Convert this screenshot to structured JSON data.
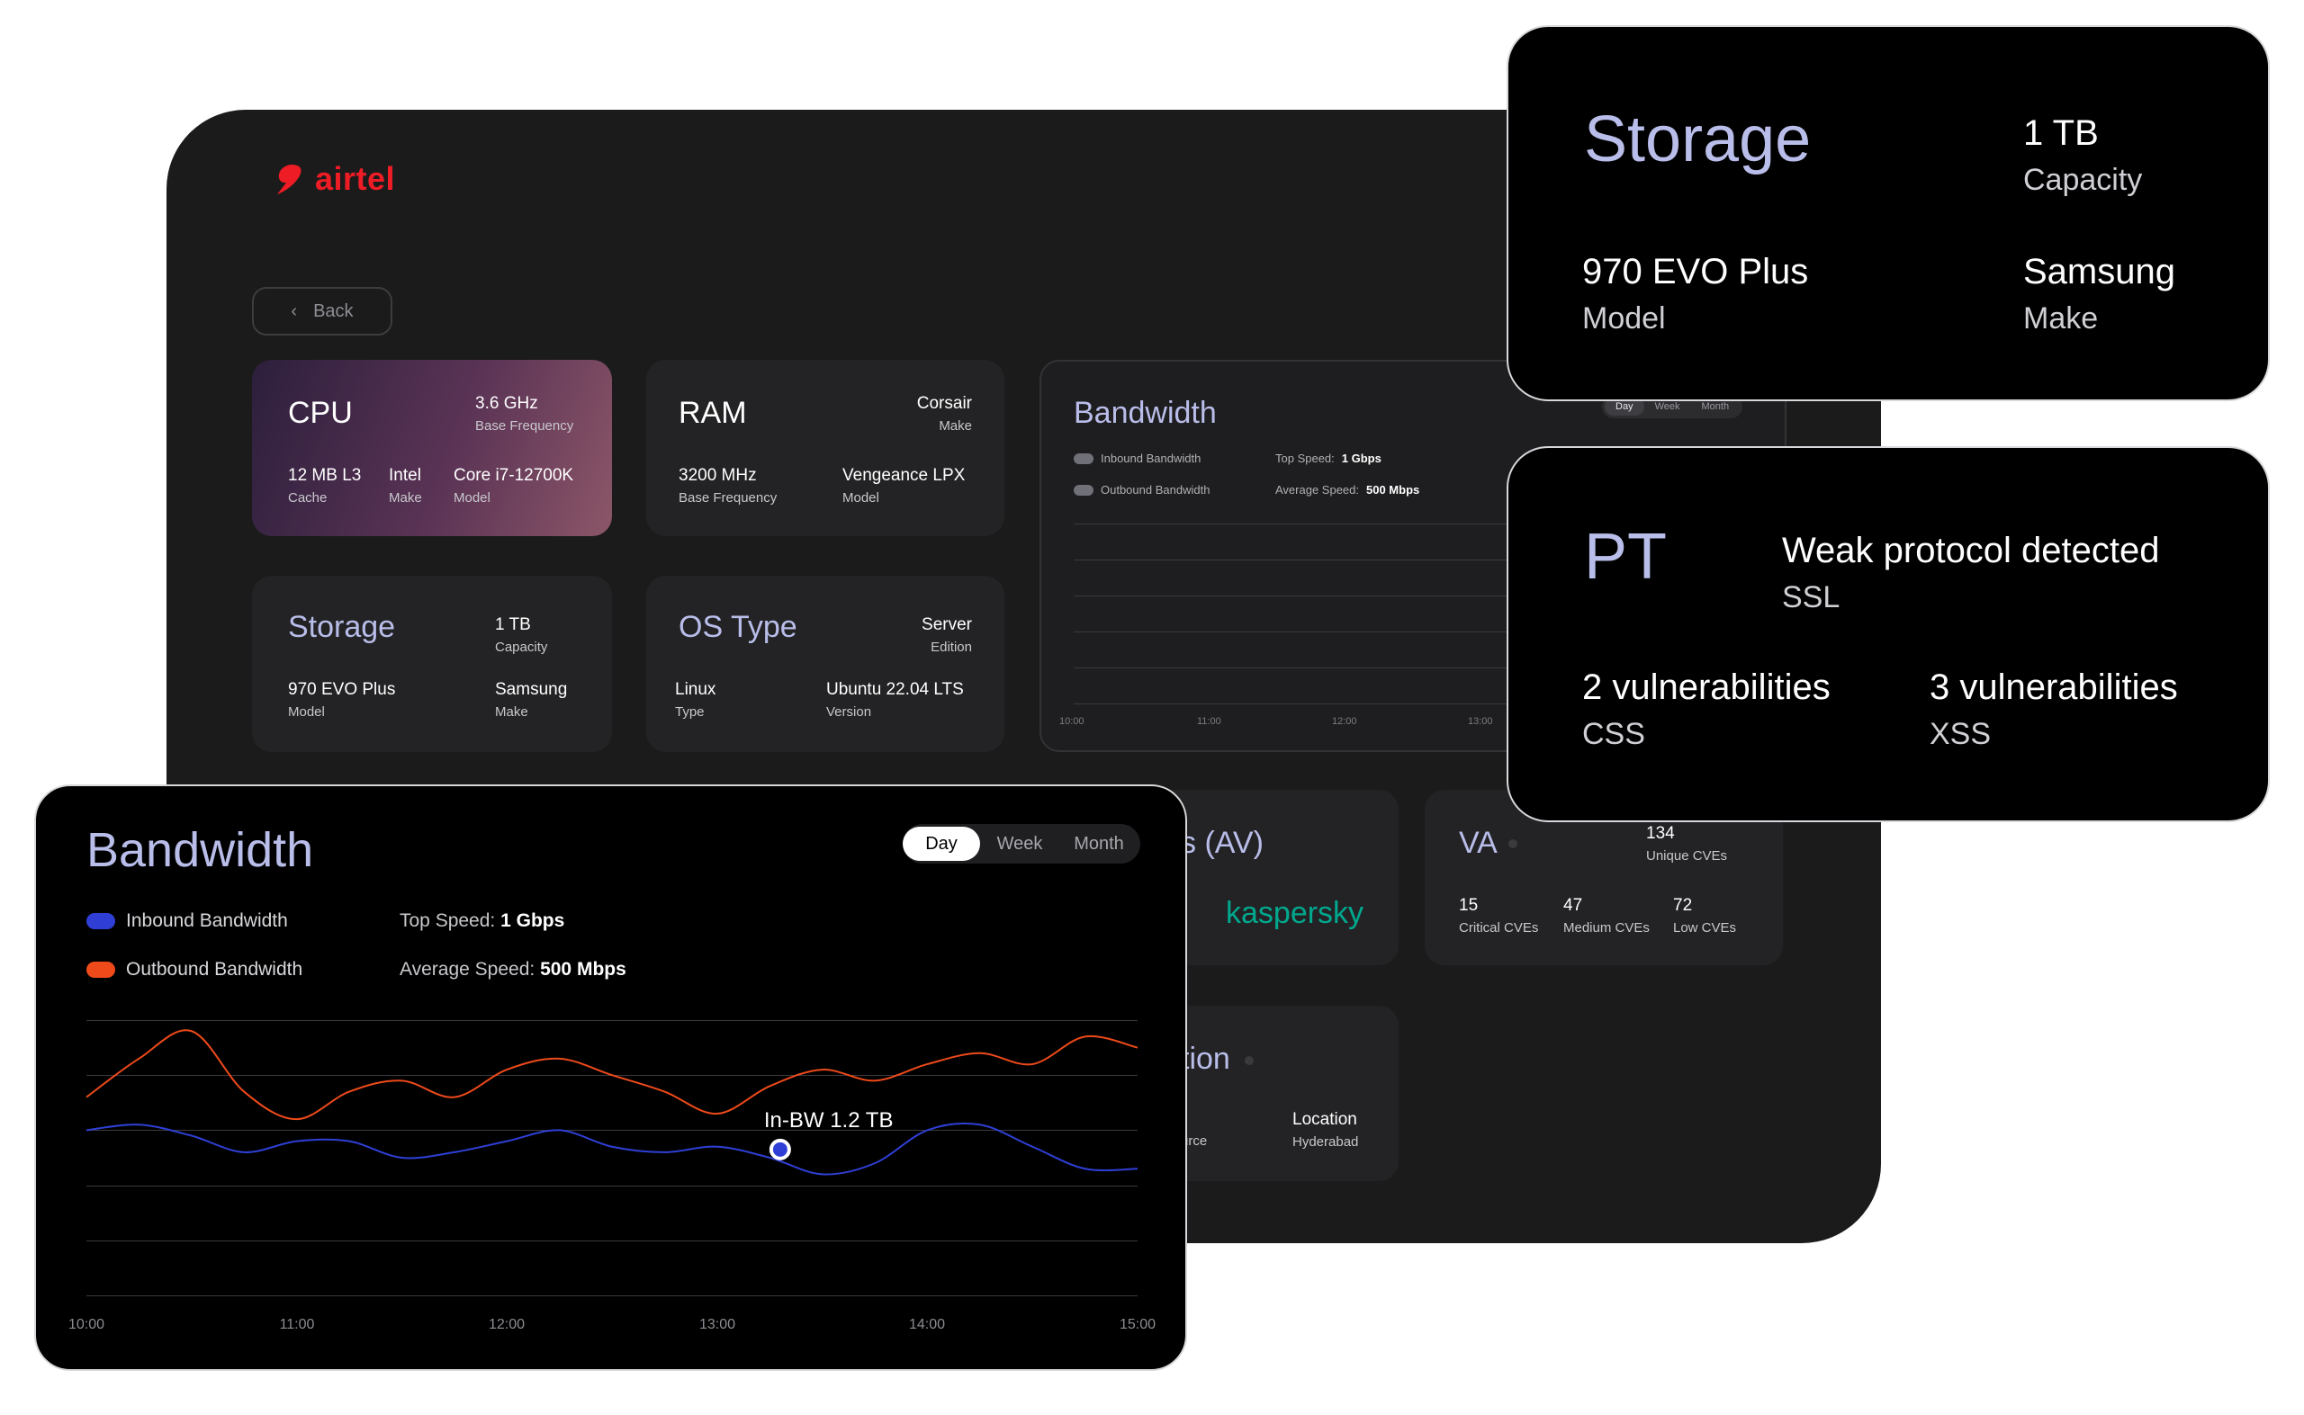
{
  "brand": {
    "name": "airtel",
    "color": "#ee1c25"
  },
  "back": {
    "label": "Back"
  },
  "cpu": {
    "title": "CPU",
    "freq": "3.6 GHz",
    "freq_label": "Base Frequency",
    "cache": "12 MB L3",
    "cache_label": "Cache",
    "make": "Intel",
    "make_label": "Make",
    "model": "Core i7-12700K",
    "model_label": "Model"
  },
  "ram": {
    "title": "RAM",
    "make": "Corsair",
    "make_label": "Make",
    "freq": "3200 MHz",
    "freq_label": "Base Frequency",
    "model": "Vengeance LPX",
    "model_label": "Model"
  },
  "storage": {
    "title": "Storage",
    "capacity": "1 TB",
    "capacity_label": "Capacity",
    "model": "970 EVO Plus",
    "model_label": "Model",
    "make": "Samsung",
    "make_label": "Make"
  },
  "os": {
    "title": "OS Type",
    "edition": "Server",
    "edition_label": "Edition",
    "type": "Linux",
    "type_label": "Type",
    "version": "Ubuntu 22.04 LTS",
    "version_label": "Version"
  },
  "bandwidth_small": {
    "title": "Bandwidth",
    "inbound": "Inbound Bandwidth",
    "outbound": "Outbound Bandwidth",
    "top_label": "Top Speed:",
    "top_value": "1 Gbps",
    "avg_label": "Average Speed:",
    "avg_value": "500 Mbps",
    "tabs": [
      "Day",
      "Week",
      "Month"
    ],
    "ticks": [
      "10:00",
      "11:00",
      "12:00",
      "13:00"
    ]
  },
  "av": {
    "title_partial": "s (AV)",
    "vendor": "kaspersky"
  },
  "va": {
    "title": "VA",
    "unique": "134",
    "unique_label": "Unique CVEs",
    "critical": "15",
    "critical_label": "Critical CVEs",
    "medium": "47",
    "medium_label": "Medium CVEs",
    "low": "72",
    "low_label": "Low CVEs"
  },
  "loc": {
    "title_partial": "tion",
    "source_partial": "urce",
    "location": "Location",
    "location_value": "Hyderabad"
  },
  "storage_overlay": {
    "title": "Storage",
    "capacity": "1 TB",
    "capacity_label": "Capacity",
    "model": "970 EVO Plus",
    "model_label": "Model",
    "make": "Samsung",
    "make_label": "Make"
  },
  "pt": {
    "title": "PT",
    "finding": "Weak protocol detected",
    "finding_label": "SSL",
    "css": "2 vulnerabilities",
    "css_label": "CSS",
    "xss": "3 vulnerabilities",
    "xss_label": "XSS"
  },
  "bandwidth": {
    "title": "Bandwidth",
    "tabs": [
      {
        "label": "Day",
        "active": true
      },
      {
        "label": "Week",
        "active": false
      },
      {
        "label": "Month",
        "active": false
      }
    ],
    "inbound_label": "Inbound Bandwidth",
    "outbound_label": "Outbound Bandwidth",
    "inbound_color": "#2f3fd6",
    "outbound_color": "#ee4a1a",
    "top_speed_label": "Top Speed:",
    "top_speed_value": "1 Gbps",
    "avg_speed_label": "Average Speed:",
    "avg_speed_value": "500 Mbps",
    "tooltip": "In-BW 1.2 TB"
  },
  "chart_data": {
    "type": "line",
    "title": "Bandwidth",
    "x": [
      "10:00",
      "11:00",
      "12:00",
      "13:00",
      "14:00",
      "15:00"
    ],
    "ylim": [
      0,
      5
    ],
    "series": [
      {
        "name": "Outbound Bandwidth",
        "color": "#ee4a1a",
        "x": [
          0,
          0.25,
          0.5,
          0.75,
          1.0,
          1.25,
          1.5,
          1.75,
          2.0,
          2.25,
          2.5,
          2.75,
          3.0,
          3.25,
          3.5,
          3.75,
          4.0,
          4.25,
          4.5,
          4.75,
          5.0
        ],
        "values": [
          3.6,
          4.3,
          4.8,
          3.7,
          3.2,
          3.7,
          3.9,
          3.6,
          4.1,
          4.3,
          4.0,
          3.7,
          3.3,
          3.8,
          4.1,
          3.9,
          4.2,
          4.4,
          4.2,
          4.7,
          4.5
        ]
      },
      {
        "name": "Inbound Bandwidth",
        "color": "#2f3fd6",
        "x": [
          0,
          0.25,
          0.5,
          0.75,
          1.0,
          1.25,
          1.5,
          1.75,
          2.0,
          2.25,
          2.5,
          2.75,
          3.0,
          3.25,
          3.5,
          3.75,
          4.0,
          4.25,
          4.5,
          4.75,
          5.0
        ],
        "values": [
          3.0,
          3.1,
          2.9,
          2.6,
          2.8,
          2.8,
          2.5,
          2.6,
          2.8,
          3.0,
          2.7,
          2.6,
          2.7,
          2.5,
          2.2,
          2.4,
          3.0,
          3.1,
          2.7,
          2.3,
          2.3
        ]
      }
    ],
    "highlight": {
      "series": "Inbound Bandwidth",
      "x": 3.3,
      "value": 2.65,
      "label": "In-BW 1.2 TB"
    }
  }
}
